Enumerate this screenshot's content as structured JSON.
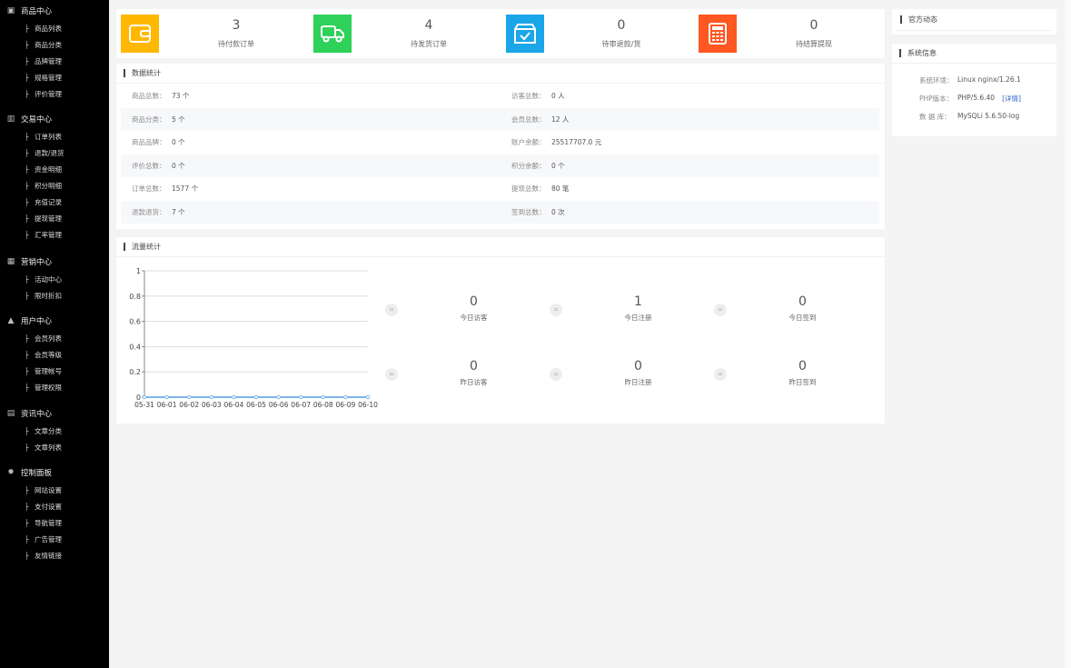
{
  "sidebar": [
    {
      "title": "商品中心",
      "icon": "shop-icon",
      "items": [
        "商品列表",
        "商品分类",
        "品牌管理",
        "规格管理",
        "评价管理"
      ]
    },
    {
      "title": "交易中心",
      "icon": "bar-chart-icon",
      "items": [
        "订单列表",
        "退款/退货",
        "资金明细",
        "积分明细",
        "充值记录",
        "提现管理",
        "汇率管理"
      ]
    },
    {
      "title": "营销中心",
      "icon": "marketing-icon",
      "items": [
        "活动中心",
        "限时折扣"
      ]
    },
    {
      "title": "用户中心",
      "icon": "user-icon",
      "items": [
        "会员列表",
        "会员等级",
        "管理帐号",
        "管理权限"
      ]
    },
    {
      "title": "资讯中心",
      "icon": "document-icon",
      "items": [
        "文章分类",
        "文章列表"
      ]
    },
    {
      "title": "控制面板",
      "icon": "gear-icon",
      "items": [
        "网站设置",
        "支付设置",
        "导航管理",
        "广告管理",
        "友情链接"
      ]
    }
  ],
  "top_stats": [
    {
      "value": "3",
      "label": "待付款订单",
      "icon": "wallet-icon",
      "color": "#FFB800"
    },
    {
      "value": "4",
      "label": "待发货订单",
      "icon": "truck-icon",
      "color": "#2ED15A"
    },
    {
      "value": "0",
      "label": "待审退款/货",
      "icon": "check-box-icon",
      "color": "#1AA6E8"
    },
    {
      "value": "0",
      "label": "待结算提现",
      "icon": "calculator-icon",
      "color": "#FF5722"
    }
  ],
  "data_stats": {
    "title": "数据统计",
    "rows": [
      [
        {
          "k": "商品总数：",
          "v": "73 个"
        },
        {
          "k": "访客总数：",
          "v": "0 人"
        }
      ],
      [
        {
          "k": "商品分类：",
          "v": "5 个"
        },
        {
          "k": "会员总数：",
          "v": "12 人"
        }
      ],
      [
        {
          "k": "商品品牌：",
          "v": "0 个"
        },
        {
          "k": "账户余额：",
          "v": "25517707.0 元"
        }
      ],
      [
        {
          "k": "评价总数：",
          "v": "0 个"
        },
        {
          "k": "积分余额：",
          "v": "0 个"
        }
      ],
      [
        {
          "k": "订单总数：",
          "v": "1577 个"
        },
        {
          "k": "提现总数：",
          "v": "80 笔"
        }
      ],
      [
        {
          "k": "退款退货：",
          "v": "7 个"
        },
        {
          "k": "签到总数：",
          "v": "0 次"
        }
      ]
    ]
  },
  "traffic": {
    "title": "流量统计",
    "items": [
      {
        "value": "0",
        "label": "今日访客"
      },
      {
        "value": "1",
        "label": "今日注册"
      },
      {
        "value": "0",
        "label": "今日签到"
      },
      {
        "value": "0",
        "label": "昨日访客"
      },
      {
        "value": "0",
        "label": "昨日注册"
      },
      {
        "value": "0",
        "label": "昨日签到"
      }
    ],
    "eq_symbol": "="
  },
  "chart_data": {
    "type": "line",
    "categories": [
      "05-31",
      "06-01",
      "06-02",
      "06-03",
      "06-04",
      "06-05",
      "06-06",
      "06-07",
      "06-08",
      "06-09",
      "06-10"
    ],
    "values": [
      0,
      0,
      0,
      0,
      0,
      0,
      0,
      0,
      0,
      0,
      0
    ],
    "ylim": [
      0,
      1
    ],
    "yticks": [
      "0",
      "0.2",
      "0.4",
      "0.6",
      "0.8",
      "1"
    ],
    "grid": true,
    "color": "#7EB6E6"
  },
  "news": {
    "title": "官方动态"
  },
  "sysinfo": {
    "title": "系统信息",
    "rows": [
      {
        "k": "系统环境：",
        "v": "Linux nginx/1.26.1"
      },
      {
        "k": "PHP版本：",
        "v": "PHP/5.6.40",
        "link": "[详情]"
      },
      {
        "k": "数 据 库：",
        "v": "MySQLi 5.6.50-log"
      }
    ]
  }
}
